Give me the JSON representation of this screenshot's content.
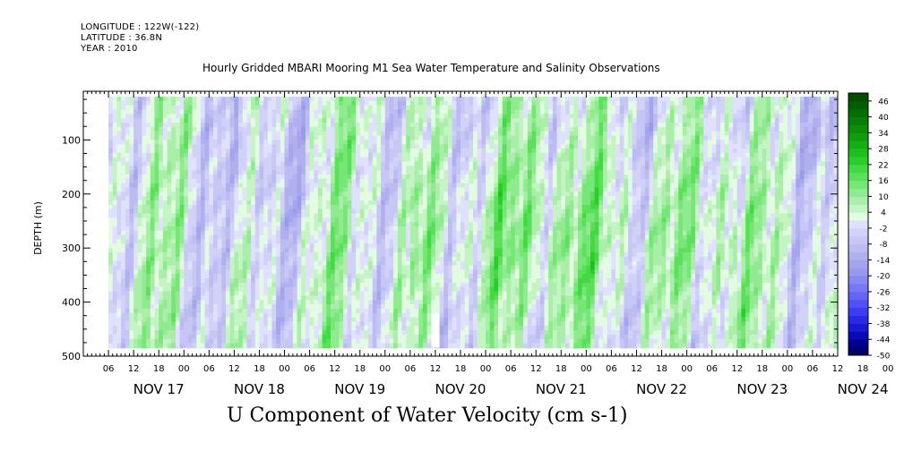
{
  "header": {
    "longitude": "LONGITUDE : 122W(-122)",
    "latitude": "LATITUDE : 36.8N",
    "year": "YEAR : 2010"
  },
  "chart_data": {
    "type": "heatmap",
    "title": "Hourly Gridded MBARI Mooring M1 Sea Water Temperature and Salinity Observations",
    "variable_label": "U Component of Water Velocity (cm s-1)",
    "ylabel": "DEPTH (m)",
    "xlabel": "",
    "y_axis": {
      "range": [
        500,
        10
      ],
      "inverted": true,
      "tick_values": [
        100,
        200,
        300,
        400,
        500
      ],
      "tick_labels": [
        "100",
        "200",
        "300",
        "400",
        "500"
      ]
    },
    "x_axis": {
      "range_hours_from_nov17_00": [
        -18,
        162
      ],
      "hour_tick_labels": [
        "06",
        "12",
        "18",
        "00",
        "06",
        "12",
        "18",
        "00",
        "06",
        "12",
        "18",
        "00",
        "06",
        "12",
        "18",
        "00",
        "06",
        "12",
        "18",
        "00",
        "06",
        "12",
        "18",
        "00",
        "06",
        "12",
        "18",
        "00",
        "06",
        "12",
        "18",
        "00"
      ],
      "day_labels": [
        "NOV 17",
        "NOV 18",
        "NOV 19",
        "NOV 20",
        "NOV 21",
        "NOV 22",
        "NOV 23",
        "NOV 24"
      ]
    },
    "data_extent": {
      "hours": [
        -12,
        162
      ],
      "depth_m": [
        20,
        485
      ]
    },
    "missing_data": [
      {
        "hours": [
          65.5,
          67.0
        ],
        "depth_m": [
          420,
          485
        ]
      }
    ],
    "colorbar": {
      "labels": [
        "46",
        "40",
        "34",
        "28",
        "22",
        "16",
        "10",
        "4",
        "-2",
        "-8",
        "-14",
        "-20",
        "-26",
        "-32",
        "-38",
        "-44",
        "-50"
      ],
      "levels": [
        -50,
        -47,
        -44,
        -41,
        -38,
        -35,
        -32,
        -29,
        -26,
        -23,
        -20,
        -17,
        -14,
        -11,
        -8,
        -5,
        -2,
        1,
        4,
        7,
        10,
        13,
        16,
        19,
        22,
        25,
        28,
        31,
        34,
        37,
        40,
        43,
        46,
        49
      ],
      "colors": [
        "#000066",
        "#00008f",
        "#0a0ab4",
        "#1a1ad2",
        "#2a2ae6",
        "#3c3cf0",
        "#5050f4",
        "#6464f6",
        "#7777f5",
        "#8888f2",
        "#9999ee",
        "#a5a5ec",
        "#b0b0ee",
        "#bcbcf2",
        "#c7c7f5",
        "#d2d2f8",
        "#e0e0ff",
        "#e2fbe2",
        "#c4f4c4",
        "#aaeeaa",
        "#90eb90",
        "#76e676",
        "#5ce05c",
        "#42da42",
        "#2acd2a",
        "#1ebe1e",
        "#16ae16",
        "#109e10",
        "#0b8e0b",
        "#077e07",
        "#046e04",
        "#025e02",
        "#014e01"
      ]
    },
    "colors": {
      "dominant_negative": "#a5a5ec",
      "dominant_positive": "#76e676"
    }
  }
}
